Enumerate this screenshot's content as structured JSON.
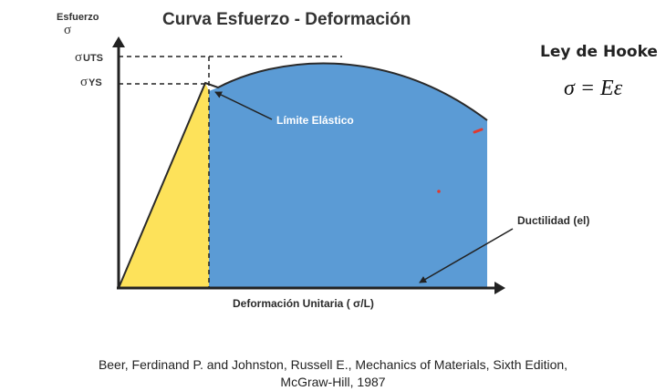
{
  "title": "Curva Esfuerzo - Deformación",
  "y_axis": {
    "label": "Esfuerzo",
    "symbol": "σ"
  },
  "x_axis": {
    "label": "Deformación Unitaria ( σ/L)"
  },
  "markers": {
    "uts": {
      "symbol": "σ",
      "subscript": "UTS"
    },
    "ys": {
      "symbol": "σ",
      "subscript": "YS"
    }
  },
  "annotations": {
    "elastic_limit": "Límite Elástico",
    "ductility": "Ductilidad (el)"
  },
  "hooke": {
    "title": "Ley de Hooke",
    "equation": "σ = Eε"
  },
  "citation": {
    "line1": "Beer, Ferdinand P. and Johnston, Russell E., Mechanics of Materials, Sixth Edition,",
    "line2": "McGraw-Hill, 1987"
  },
  "colors": {
    "elastic_region": "#fde25a",
    "plastic_region": "#5b9bd5",
    "axis": "#222222",
    "red_marks": "#e03a2f"
  }
}
